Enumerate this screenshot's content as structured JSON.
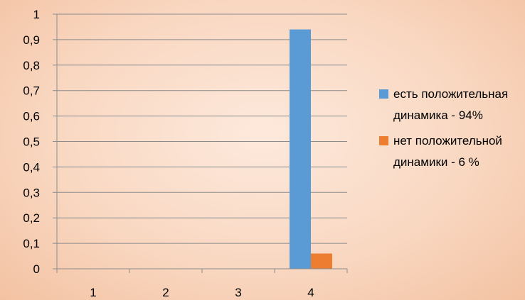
{
  "chart_data": {
    "type": "bar",
    "categories": [
      "1",
      "2",
      "3",
      "4"
    ],
    "series": [
      {
        "name": "есть положительная динамика - 94%",
        "color": "#5b9bd5",
        "values": [
          0,
          0,
          0,
          0.94
        ]
      },
      {
        "name": "нет положительной динамики - 6 %",
        "color": "#ed7d31",
        "values": [
          0,
          0,
          0,
          0.06
        ]
      }
    ],
    "y_ticks": [
      "0",
      "0,1",
      "0,2",
      "0,3",
      "0,4",
      "0,5",
      "0,6",
      "0,7",
      "0,8",
      "0,9",
      "1"
    ],
    "ylim": [
      0,
      1
    ],
    "grid": true,
    "legend_position": "right",
    "title": "",
    "xlabel": "",
    "ylabel": ""
  }
}
